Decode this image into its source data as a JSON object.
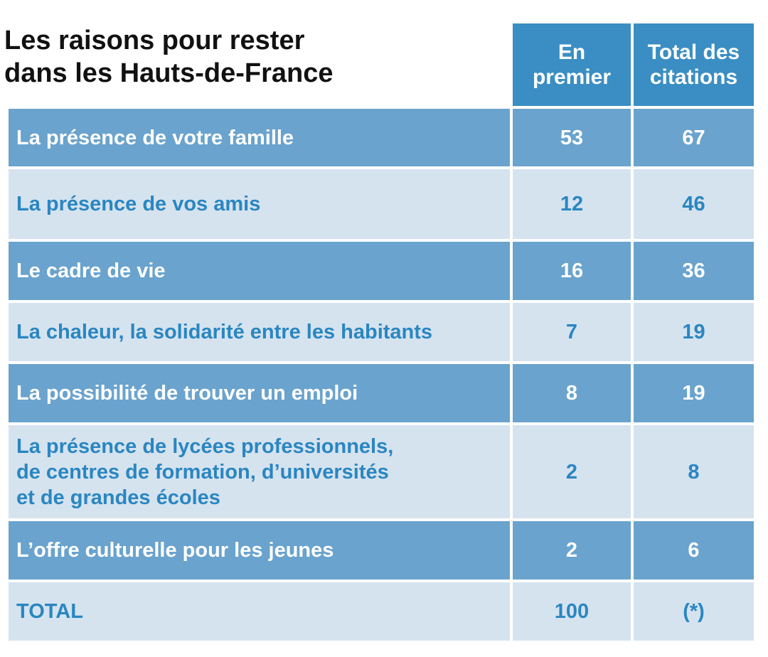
{
  "title_lines": [
    "Les raisons pour rester",
    "dans les Hauts-de-France"
  ],
  "headers": {
    "first": [
      "En",
      "premier"
    ],
    "total": [
      "Total des",
      "citations"
    ]
  },
  "rows": [
    {
      "label": [
        "La présence de votre famille"
      ],
      "first": "53",
      "total": "67"
    },
    {
      "label": [
        "La présence de vos amis"
      ],
      "first": "12",
      "total": "46"
    },
    {
      "label": [
        "Le cadre de vie"
      ],
      "first": "16",
      "total": "36"
    },
    {
      "label": [
        "La chaleur, la solidarité entre les habitants"
      ],
      "first": "7",
      "total": "19"
    },
    {
      "label": [
        "La possibilité de trouver un emploi"
      ],
      "first": "8",
      "total": "19"
    },
    {
      "label": [
        "La présence de lycées professionnels,",
        "de centres de formation, d’universités",
        "et de grandes écoles"
      ],
      "first": "2",
      "total": "8"
    },
    {
      "label": [
        "L’offre culturelle pour les jeunes"
      ],
      "first": "2",
      "total": "6"
    },
    {
      "label": [
        "TOTAL"
      ],
      "first": "100",
      "total": "(*)"
    }
  ],
  "colors": {
    "header_bg": "#3a8ec3",
    "row_dark_bg": "#6aa3cd",
    "row_light_bg": "#d5e3ef",
    "row_light_text": "#2a86c1",
    "row_dark_text": "#ffffff"
  },
  "chart_data": {
    "type": "table",
    "title": "Les raisons pour rester dans les Hauts-de-France",
    "columns": [
      "En premier",
      "Total des citations"
    ],
    "categories": [
      "La présence de votre famille",
      "La présence de vos amis",
      "Le cadre de vie",
      "La chaleur, la solidarité entre les habitants",
      "La possibilité de trouver un emploi",
      "La présence de lycées professionnels, de centres de formation, d’universités et de grandes écoles",
      "L’offre culturelle pour les jeunes",
      "TOTAL"
    ],
    "series": [
      {
        "name": "En premier",
        "values": [
          "53",
          "12",
          "16",
          "7",
          "8",
          "2",
          "2",
          "100"
        ]
      },
      {
        "name": "Total des citations",
        "values": [
          "67",
          "46",
          "36",
          "19",
          "19",
          "8",
          "6",
          "(*)"
        ]
      }
    ]
  }
}
